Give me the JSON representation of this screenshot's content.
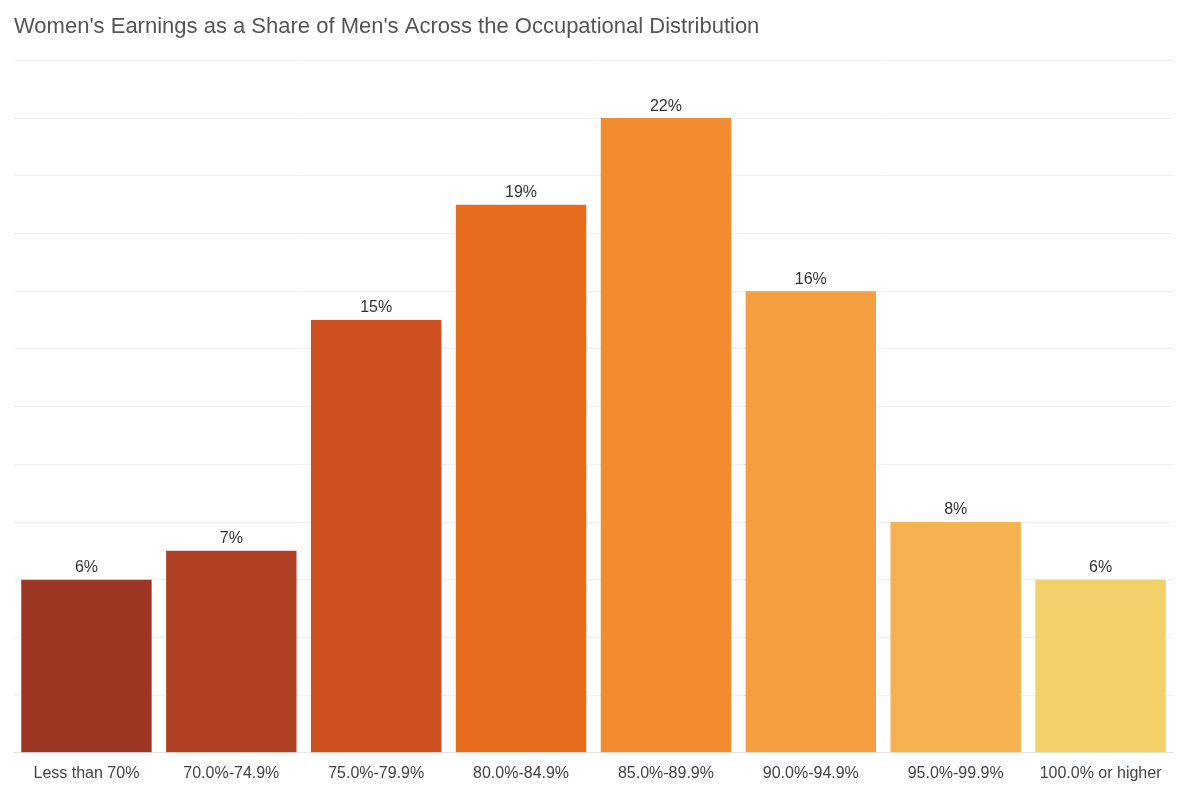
{
  "chart_data": {
    "type": "bar",
    "title": "Women's Earnings as a Share of Men's Across the Occupational Distribution",
    "categories": [
      "Less than 70%",
      "70.0%-74.9%",
      "75.0%-79.9%",
      "80.0%-84.9%",
      "85.0%-89.9%",
      "90.0%-94.9%",
      "95.0%-99.9%",
      "100.0% or higher"
    ],
    "values": [
      6,
      7,
      15,
      19,
      22,
      16,
      8,
      6
    ],
    "value_labels": [
      "6%",
      "7%",
      "15%",
      "19%",
      "22%",
      "16%",
      "8%",
      "6%"
    ],
    "colors": [
      "#9E3624",
      "#B04024",
      "#CE5020",
      "#E86C1E",
      "#F28C30",
      "#F59E42",
      "#F6B250",
      "#F2D06A"
    ],
    "ylim": [
      0,
      24
    ],
    "yticks": [
      0,
      2,
      4,
      6,
      8,
      10,
      12,
      14,
      16,
      18,
      20,
      22,
      24
    ],
    "grid": true,
    "data_labels": true,
    "tick_labels": "x"
  }
}
